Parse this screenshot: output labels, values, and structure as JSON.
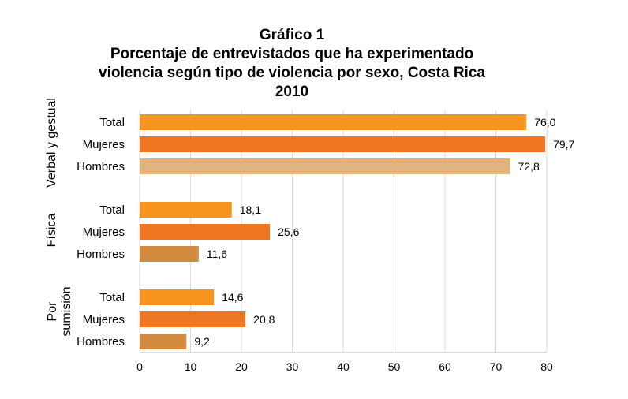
{
  "title_lines": [
    "Gráfico 1",
    "Porcentaje de entrevistados que ha experimentado",
    "violencia según tipo de violencia por sexo, Costa Rica",
    "2010"
  ],
  "chart_data": {
    "type": "bar",
    "orientation": "horizontal",
    "title": "Gráfico 1 Porcentaje de entrevistados que ha experimentado violencia según tipo de violencia por sexo, Costa Rica 2010",
    "xlim": [
      0,
      80
    ],
    "xticks": [
      0,
      10,
      20,
      30,
      40,
      50,
      60,
      70,
      80
    ],
    "grid": true,
    "legend": "none",
    "groups": [
      {
        "name": "Verbal y gestual",
        "bars": [
          {
            "label": "Total",
            "value": 76.0,
            "value_label": "76,0",
            "color": "#F7941E"
          },
          {
            "label": "Mujeres",
            "value": 79.7,
            "value_label": "79,7",
            "color": "#EE7623"
          },
          {
            "label": "Hombres",
            "value": 72.8,
            "value_label": "72,8",
            "color": "#E0B47C"
          }
        ]
      },
      {
        "name": "Física",
        "bars": [
          {
            "label": "Total",
            "value": 18.1,
            "value_label": "18,1",
            "color": "#F7941E"
          },
          {
            "label": "Mujeres",
            "value": 25.6,
            "value_label": "25,6",
            "color": "#EE7623"
          },
          {
            "label": "Hombres",
            "value": 11.6,
            "value_label": "11,6",
            "color": "#D38C3F"
          }
        ]
      },
      {
        "name": "Por sumisión",
        "name_lines": [
          "Por",
          "sumisión"
        ],
        "bars": [
          {
            "label": "Total",
            "value": 14.6,
            "value_label": "14,6",
            "color": "#F7941E"
          },
          {
            "label": "Mujeres",
            "value": 20.8,
            "value_label": "20,8",
            "color": "#EE7623"
          },
          {
            "label": "Hombres",
            "value": 9.2,
            "value_label": "9,2",
            "color": "#D38C3F"
          }
        ]
      }
    ]
  }
}
